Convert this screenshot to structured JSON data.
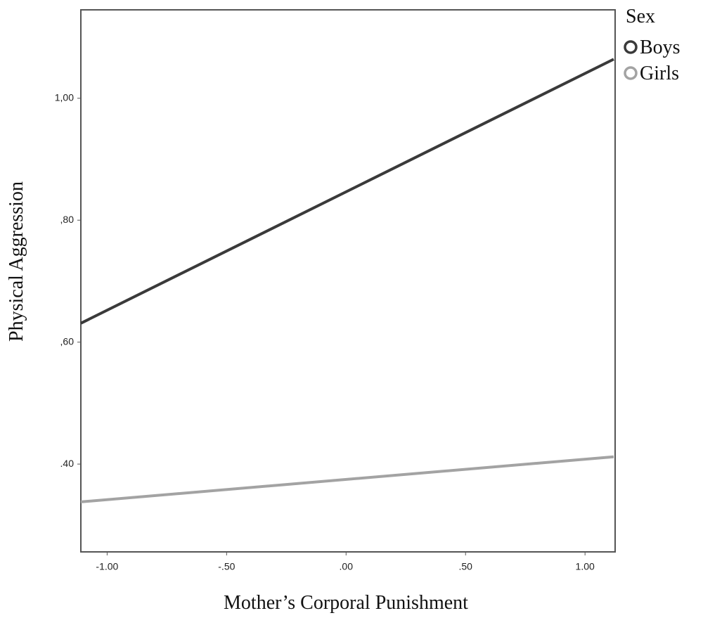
{
  "chart_data": {
    "type": "line",
    "x_label": "Mother’s Corporal Punishment",
    "y_label": "Physical Aggression",
    "legend_title": "Sex",
    "legend_position": "outside-top-right",
    "x": [
      -1.11,
      1.12
    ],
    "series": [
      {
        "name": "Boys",
        "color": "#3a3a3a",
        "values": [
          0.631,
          1.064
        ]
      },
      {
        "name": "Girls",
        "color": "#a3a3a3",
        "values": [
          0.338,
          0.412
        ]
      }
    ],
    "xlim": [
      -1.11,
      1.126
    ],
    "ylim": [
      0.256,
      1.145
    ],
    "xticks": [
      {
        "value": -1,
        "label": "-1.00"
      },
      {
        "value": -0.5,
        "label": "-.50"
      },
      {
        "value": 0,
        "label": ".00"
      },
      {
        "value": 0.5,
        "label": ".50"
      },
      {
        "value": 1,
        "label": "1.00"
      }
    ],
    "yticks": [
      {
        "value": 0.4,
        "label": ".40"
      },
      {
        "value": 0.6,
        "label": ",60"
      },
      {
        "value": 0.8,
        "label": ",80"
      },
      {
        "value": 1,
        "label": "1,00"
      }
    ],
    "grid": false
  }
}
